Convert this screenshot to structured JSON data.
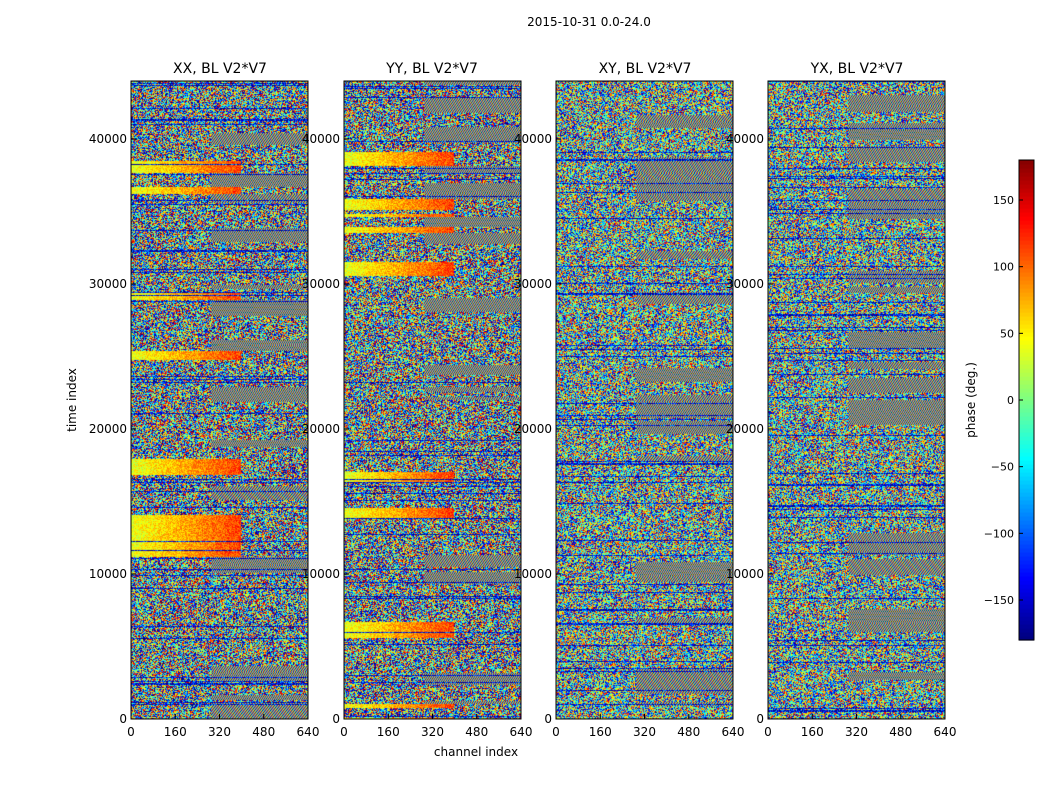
{
  "figure": {
    "suptitle": "2015-10-31 0.0-24.0"
  },
  "chart_data": {
    "type": "heatmap",
    "panels": [
      {
        "title": "XX, BL V2*V7"
      },
      {
        "title": "YY, BL V2*V7"
      },
      {
        "title": "XY, BL V2*V7"
      },
      {
        "title": "YX, BL V2*V7"
      }
    ],
    "xlabel": "channel index",
    "ylabel": "time index",
    "xlim": [
      0,
      640
    ],
    "ylim": [
      0,
      44000
    ],
    "x_ticks": [
      "0",
      "160",
      "320",
      "480",
      "640"
    ],
    "y_ticks": [
      "0",
      "10000",
      "20000",
      "30000",
      "40000"
    ],
    "x_tick_values": [
      0,
      160,
      320,
      480,
      640
    ],
    "y_tick_values": [
      0,
      10000,
      20000,
      30000,
      40000
    ],
    "colorbar": {
      "label": "phase (deg.)",
      "range": [
        -180,
        180
      ],
      "ticks": [
        "150",
        "100",
        "50",
        "0",
        "−50",
        "−100",
        "−150"
      ],
      "tick_values": [
        150,
        100,
        50,
        0,
        -50,
        -100,
        -150
      ],
      "colormap": "jet",
      "colors": [
        "#00007f",
        "#0000ff",
        "#007fff",
        "#00ffff",
        "#7fff7f",
        "#ffff00",
        "#ff7f00",
        "#ff0000",
        "#7f0000"
      ]
    },
    "noise_note": "phase values appear random/noisy; stripes and gaps correspond to scan boundaries"
  }
}
